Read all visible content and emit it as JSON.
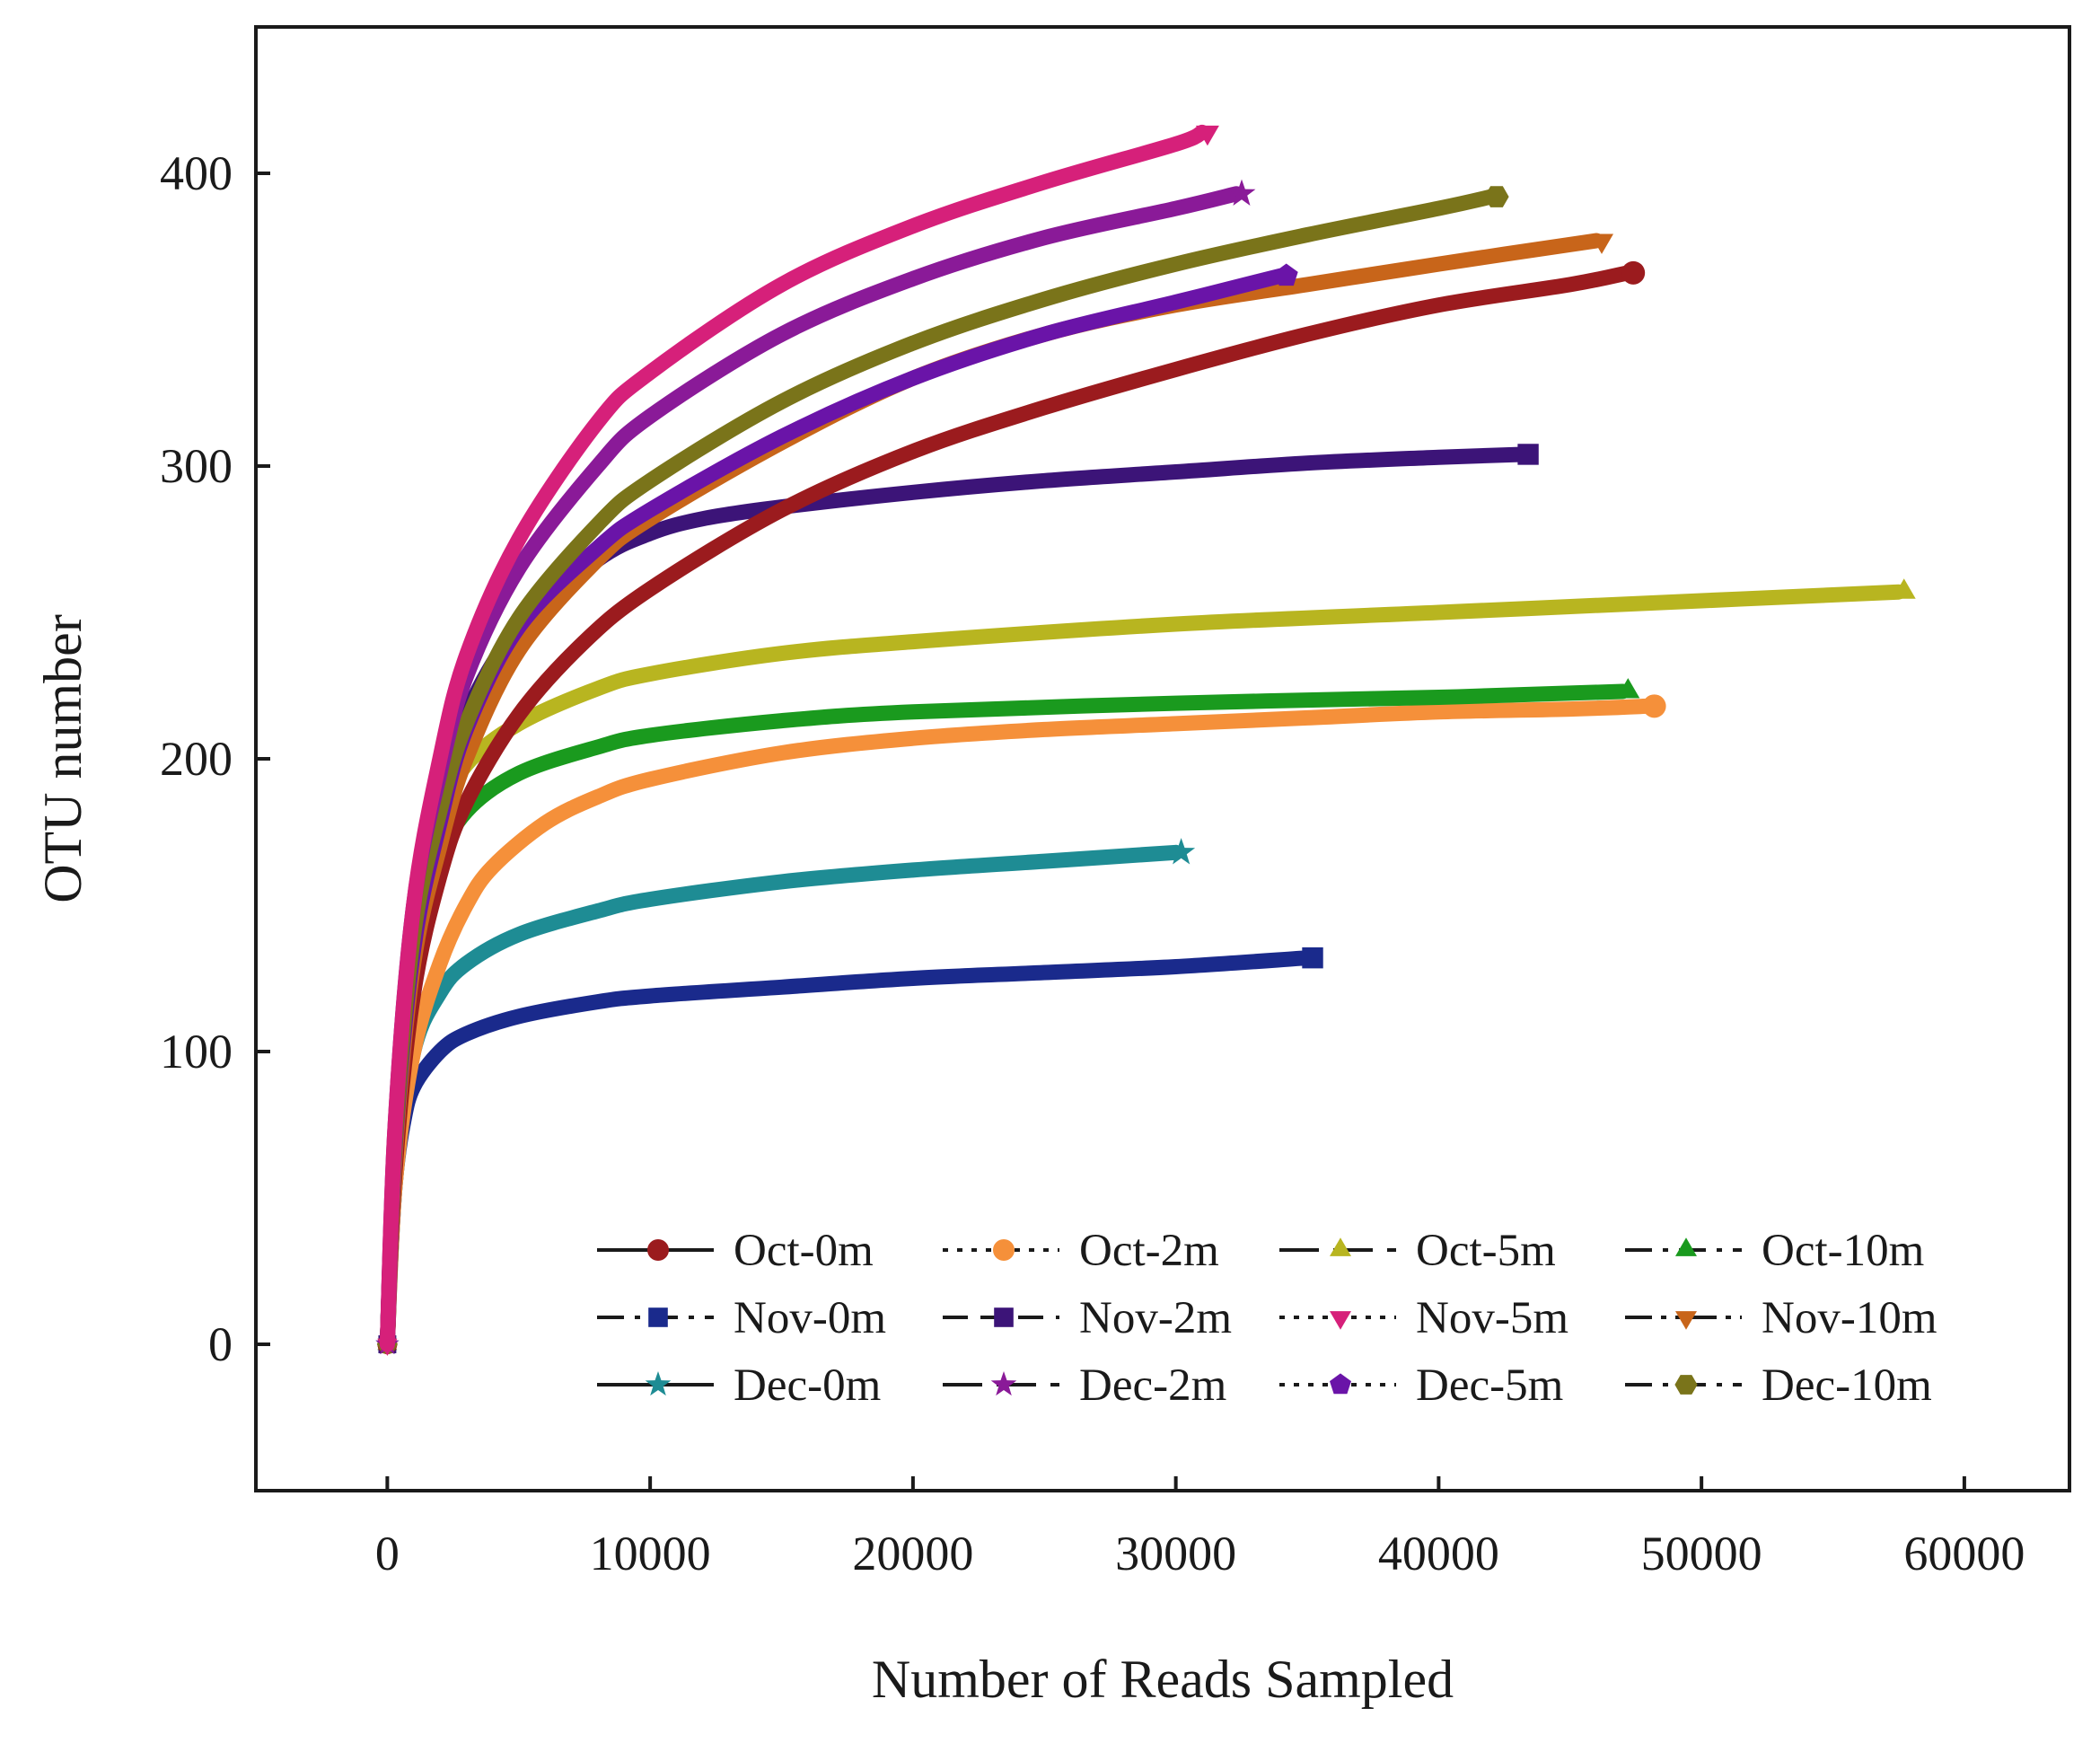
{
  "chart_data": {
    "type": "line",
    "title": "",
    "xlabel": "Number of Reads Sampled",
    "ylabel": "OTU number",
    "xlim": [
      -5000,
      64000
    ],
    "ylim": [
      -50,
      450
    ],
    "xticks": [
      0,
      10000,
      20000,
      30000,
      40000,
      50000,
      60000
    ],
    "xtick_labels": [
      "0",
      "10000",
      "20000",
      "30000",
      "40000",
      "50000",
      "60000"
    ],
    "yticks": [
      0,
      100,
      200,
      300,
      400
    ],
    "ytick_labels": [
      "0",
      "100",
      "200",
      "300",
      "400"
    ],
    "grid": false,
    "legend_position": "bottom-right",
    "series": [
      {
        "name": "Oct-0m",
        "color": "#9b1b1e",
        "marker": "circle",
        "dash": "solid",
        "points": [
          [
            0,
            0
          ],
          [
            300,
            60
          ],
          [
            1000,
            120
          ],
          [
            2000,
            160
          ],
          [
            3000,
            185
          ],
          [
            5000,
            215
          ],
          [
            7500,
            240
          ],
          [
            10000,
            258
          ],
          [
            15000,
            285
          ],
          [
            20000,
            305
          ],
          [
            25000,
            320
          ],
          [
            30000,
            333
          ],
          [
            35000,
            345
          ],
          [
            40000,
            355
          ],
          [
            45000,
            362
          ],
          [
            47200,
            366
          ]
        ]
      },
      {
        "name": "Oct-2m",
        "color": "#f5903a",
        "marker": "circle",
        "dash": "dotted",
        "points": [
          [
            0,
            0
          ],
          [
            300,
            55
          ],
          [
            1000,
            100
          ],
          [
            2000,
            130
          ],
          [
            3000,
            150
          ],
          [
            4000,
            163
          ],
          [
            6000,
            178
          ],
          [
            8000,
            187
          ],
          [
            10000,
            193
          ],
          [
            15000,
            202
          ],
          [
            20000,
            207
          ],
          [
            25000,
            210
          ],
          [
            30000,
            212
          ],
          [
            35000,
            214
          ],
          [
            40000,
            216
          ],
          [
            45000,
            217
          ],
          [
            48000,
            218
          ]
        ]
      },
      {
        "name": "Oct-5m",
        "color": "#b8b520",
        "marker": "triangle-up",
        "dash": "long-dash",
        "points": [
          [
            0,
            0
          ],
          [
            300,
            70
          ],
          [
            1000,
            140
          ],
          [
            2000,
            180
          ],
          [
            3000,
            198
          ],
          [
            5000,
            212
          ],
          [
            8000,
            224
          ],
          [
            10000,
            229
          ],
          [
            15000,
            236
          ],
          [
            20000,
            240
          ],
          [
            30000,
            246
          ],
          [
            40000,
            250
          ],
          [
            50000,
            254
          ],
          [
            57500,
            257
          ]
        ]
      },
      {
        "name": "Oct-10m",
        "color": "#1a9a1e",
        "marker": "triangle-up",
        "dash": "dash-dot",
        "points": [
          [
            0,
            0
          ],
          [
            300,
            65
          ],
          [
            1000,
            130
          ],
          [
            2000,
            165
          ],
          [
            3000,
            182
          ],
          [
            5000,
            195
          ],
          [
            8000,
            204
          ],
          [
            10000,
            208
          ],
          [
            15000,
            213
          ],
          [
            20000,
            216
          ],
          [
            30000,
            219
          ],
          [
            40000,
            221
          ],
          [
            47000,
            223
          ]
        ]
      },
      {
        "name": "Nov-0m",
        "color": "#1a2a8c",
        "marker": "square",
        "dash": "dash-dot",
        "points": [
          [
            0,
            0
          ],
          [
            100,
            25
          ],
          [
            300,
            55
          ],
          [
            600,
            75
          ],
          [
            1000,
            88
          ],
          [
            2000,
            100
          ],
          [
            3000,
            106
          ],
          [
            5000,
            112
          ],
          [
            8000,
            117
          ],
          [
            10000,
            119
          ],
          [
            15000,
            122
          ],
          [
            20000,
            125
          ],
          [
            25000,
            127
          ],
          [
            30000,
            129
          ],
          [
            35000,
            132
          ]
        ]
      },
      {
        "name": "Nov-2m",
        "color": "#3c1478",
        "marker": "square",
        "dash": "dashed",
        "points": [
          [
            0,
            0
          ],
          [
            300,
            70
          ],
          [
            1000,
            140
          ],
          [
            2000,
            185
          ],
          [
            3000,
            215
          ],
          [
            5000,
            245
          ],
          [
            8000,
            268
          ],
          [
            10000,
            277
          ],
          [
            12000,
            282
          ],
          [
            15000,
            286
          ],
          [
            20000,
            291
          ],
          [
            25000,
            295
          ],
          [
            30000,
            298
          ],
          [
            35000,
            301
          ],
          [
            40000,
            303
          ],
          [
            43200,
            304
          ]
        ]
      },
      {
        "name": "Nov-5m",
        "color": "#d6207a",
        "marker": "triangle-down",
        "dash": "dotted",
        "points": [
          [
            0,
            0
          ],
          [
            300,
            75
          ],
          [
            1000,
            150
          ],
          [
            2000,
            200
          ],
          [
            3000,
            235
          ],
          [
            5000,
            275
          ],
          [
            8000,
            315
          ],
          [
            10000,
            332
          ],
          [
            15000,
            362
          ],
          [
            20000,
            382
          ],
          [
            25000,
            397
          ],
          [
            30000,
            410
          ],
          [
            31000,
            414
          ]
        ]
      },
      {
        "name": "Nov-10m",
        "color": "#c8651a",
        "marker": "triangle-down",
        "dash": "dash-dot-dot",
        "points": [
          [
            0,
            0
          ],
          [
            300,
            65
          ],
          [
            1000,
            130
          ],
          [
            2000,
            170
          ],
          [
            3000,
            200
          ],
          [
            5000,
            237
          ],
          [
            8000,
            268
          ],
          [
            10000,
            282
          ],
          [
            15000,
            308
          ],
          [
            20000,
            330
          ],
          [
            25000,
            345
          ],
          [
            30000,
            355
          ],
          [
            35000,
            362
          ],
          [
            40000,
            369
          ],
          [
            46000,
            377
          ]
        ]
      },
      {
        "name": "Dec-0m",
        "color": "#1e8c94",
        "marker": "star",
        "dash": "solid",
        "points": [
          [
            0,
            0
          ],
          [
            300,
            55
          ],
          [
            1000,
            100
          ],
          [
            2000,
            120
          ],
          [
            3000,
            130
          ],
          [
            5000,
            140
          ],
          [
            8000,
            148
          ],
          [
            10000,
            152
          ],
          [
            15000,
            158
          ],
          [
            20000,
            162
          ],
          [
            25000,
            165
          ],
          [
            30000,
            168
          ]
        ]
      },
      {
        "name": "Dec-2m",
        "color": "#8a1a98",
        "marker": "star",
        "dash": "long-dash",
        "points": [
          [
            0,
            0
          ],
          [
            300,
            75
          ],
          [
            1000,
            150
          ],
          [
            2000,
            195
          ],
          [
            3000,
            228
          ],
          [
            5000,
            265
          ],
          [
            8000,
            300
          ],
          [
            10000,
            317
          ],
          [
            15000,
            345
          ],
          [
            20000,
            364
          ],
          [
            25000,
            378
          ],
          [
            30000,
            388
          ],
          [
            32300,
            393
          ]
        ]
      },
      {
        "name": "Dec-5m",
        "color": "#6a14a8",
        "marker": "pentagon",
        "dash": "dotted",
        "points": [
          [
            0,
            0
          ],
          [
            300,
            68
          ],
          [
            1000,
            135
          ],
          [
            2000,
            178
          ],
          [
            3000,
            210
          ],
          [
            5000,
            245
          ],
          [
            8000,
            272
          ],
          [
            10000,
            285
          ],
          [
            15000,
            310
          ],
          [
            20000,
            330
          ],
          [
            25000,
            345
          ],
          [
            30000,
            356
          ],
          [
            34000,
            365
          ]
        ]
      },
      {
        "name": "Dec-10m",
        "color": "#7a741a",
        "marker": "hexagon",
        "dash": "dash-dot",
        "points": [
          [
            0,
            0
          ],
          [
            300,
            70
          ],
          [
            1000,
            140
          ],
          [
            2000,
            182
          ],
          [
            3000,
            212
          ],
          [
            5000,
            248
          ],
          [
            8000,
            280
          ],
          [
            10000,
            295
          ],
          [
            15000,
            322
          ],
          [
            20000,
            342
          ],
          [
            25000,
            357
          ],
          [
            30000,
            369
          ],
          [
            35000,
            379
          ],
          [
            40000,
            388
          ],
          [
            42000,
            392
          ]
        ]
      }
    ]
  }
}
